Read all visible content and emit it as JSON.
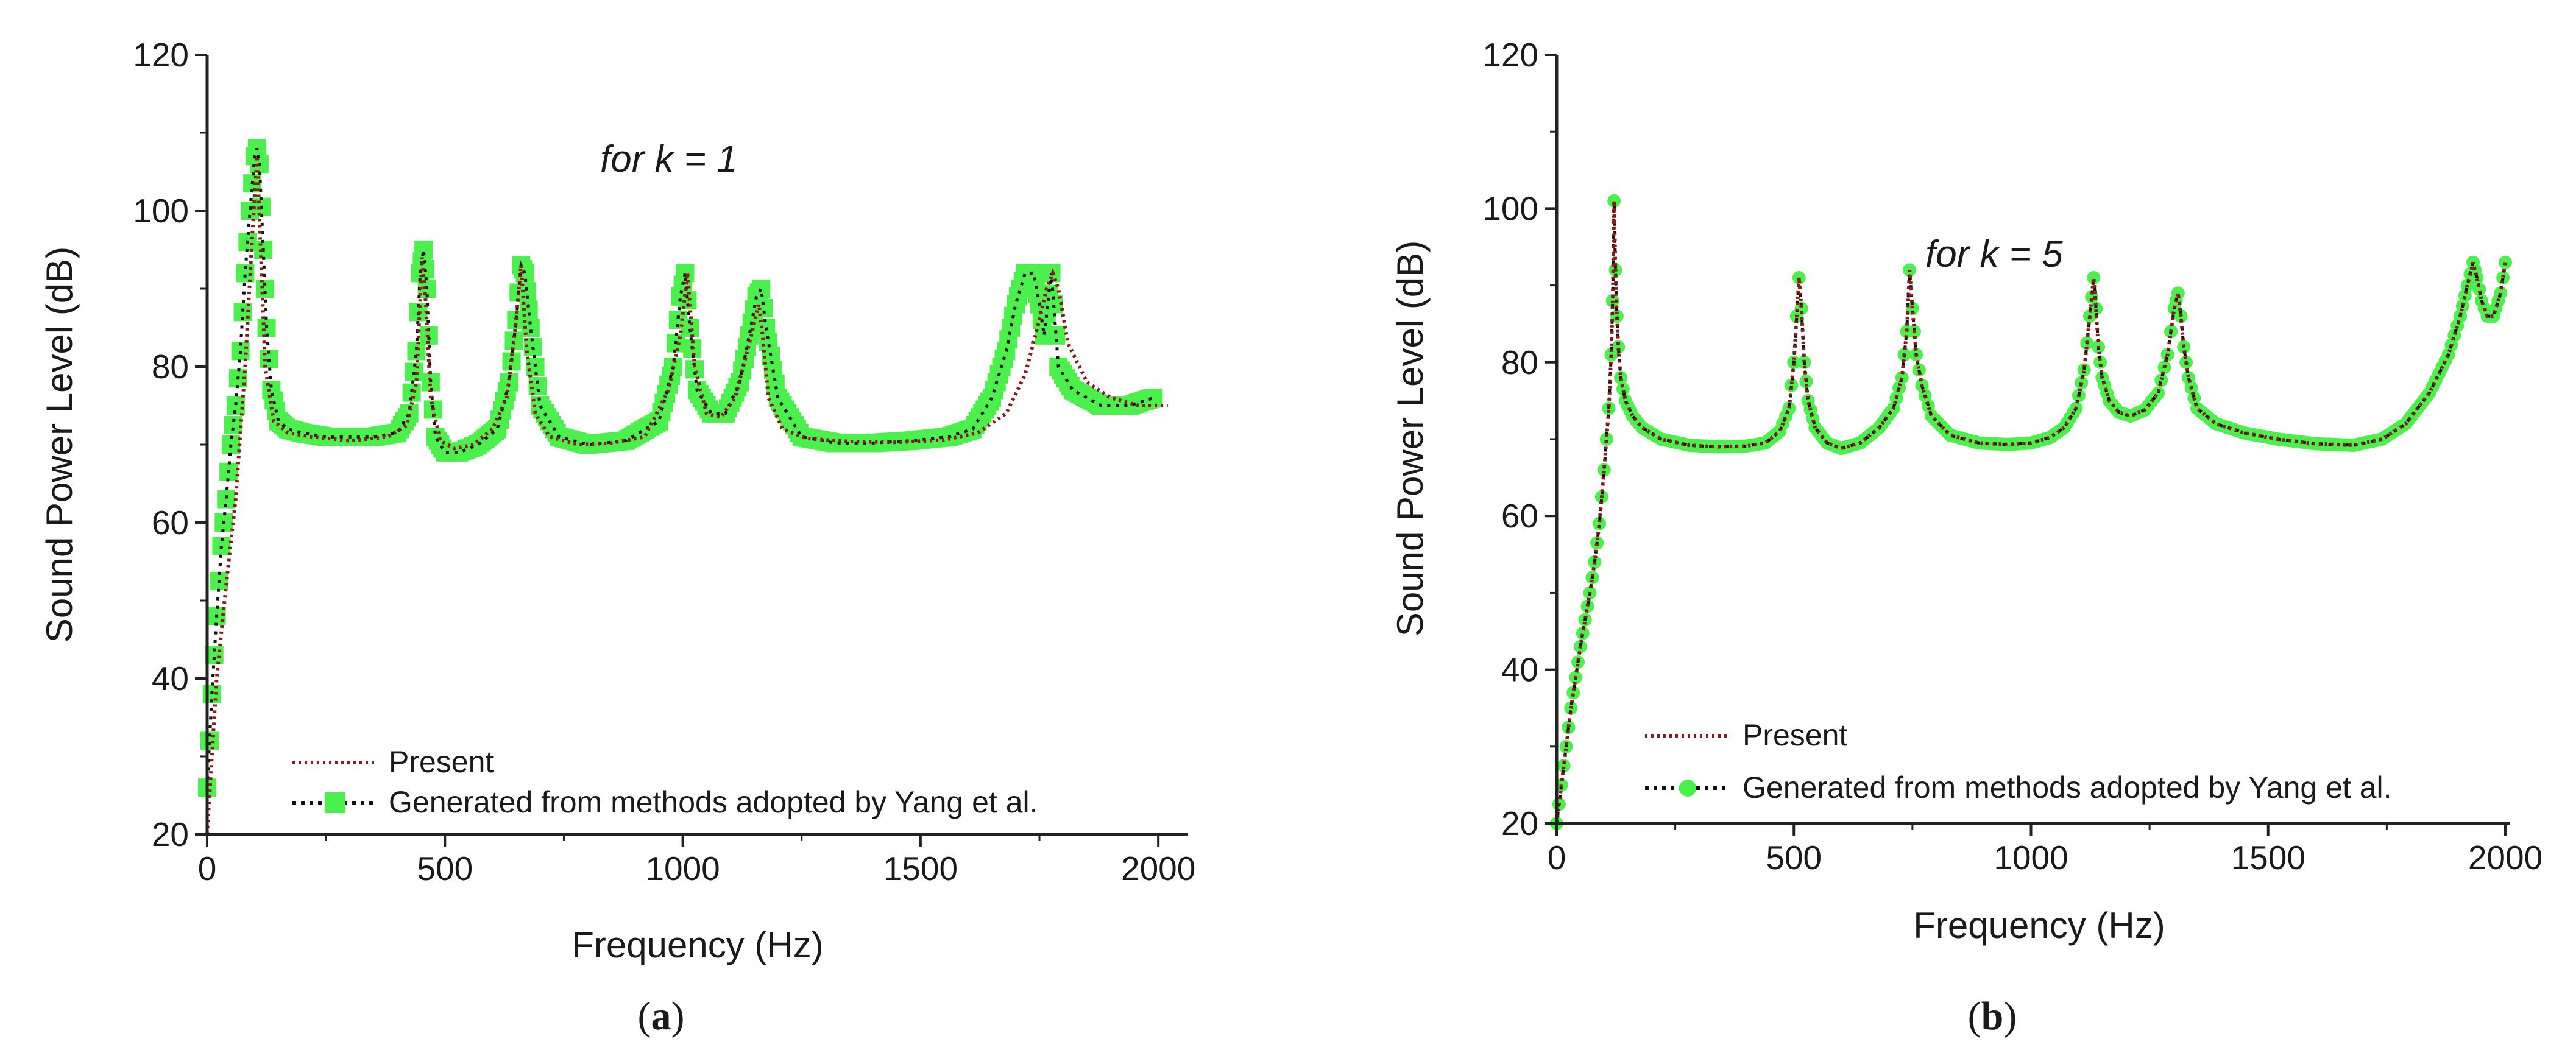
{
  "colors": {
    "present": "#8b1a1a",
    "yang_line": "#111111",
    "yang_marker": "#4cf04c",
    "axis": "#222222"
  },
  "chart_data": [
    {
      "type": "line",
      "panel_label_prefix": "(",
      "panel_label_letter": "a",
      "panel_label_suffix": ")",
      "annotation": "for k = 1",
      "xlabel": "Frequency (Hz)",
      "ylabel": "Sound Power Level (dB)",
      "xlim": [
        0,
        2060
      ],
      "ylim": [
        20,
        120
      ],
      "xticks": [
        0,
        500,
        1000,
        1500,
        2000
      ],
      "yticks": [
        20,
        40,
        60,
        80,
        100,
        120
      ],
      "marker": "square",
      "legend_position": "bottom-center",
      "legend": [
        "Present",
        "Generated from methods adopted by Yang et al."
      ],
      "series": [
        {
          "name": "Present",
          "style": "dotted",
          "x": [
            0,
            20,
            40,
            60,
            80,
            95,
            105,
            112,
            122,
            140,
            170,
            220,
            300,
            380,
            420,
            440,
            452,
            460,
            470,
            490,
            520,
            560,
            600,
            630,
            648,
            660,
            672,
            690,
            720,
            780,
            850,
            920,
            970,
            995,
            1010,
            1025,
            1050,
            1080,
            1110,
            1140,
            1160,
            1168,
            1180,
            1210,
            1260,
            1350,
            1450,
            1550,
            1620,
            1680,
            1720,
            1750,
            1765,
            1778,
            1790,
            1810,
            1850,
            1900,
            1960,
            2020
          ],
          "y": [
            20,
            40,
            52,
            63,
            80,
            97,
            107,
            96,
            80,
            73,
            71.5,
            71,
            70.5,
            71,
            72.5,
            78,
            94,
            88,
            76,
            70.5,
            69.5,
            70,
            72,
            76,
            85,
            93,
            82,
            74,
            71,
            70,
            70.2,
            71,
            77,
            84,
            92,
            80,
            74,
            73.5,
            76,
            83,
            88,
            84,
            76,
            72,
            70.8,
            70.4,
            70.3,
            70.6,
            71.5,
            74,
            79,
            86,
            90,
            92,
            90,
            83,
            78,
            76,
            75,
            75
          ]
        },
        {
          "name": "Generated from methods adopted by Yang et al.",
          "style": "dotted",
          "x": [
            0,
            10,
            20,
            30,
            40,
            50,
            60,
            70,
            80,
            90,
            100,
            105,
            110,
            118,
            125,
            135,
            150,
            170,
            200,
            250,
            300,
            350,
            400,
            425,
            440,
            448,
            455,
            462,
            470,
            480,
            500,
            530,
            570,
            610,
            635,
            650,
            660,
            668,
            680,
            700,
            740,
            800,
            880,
            950,
            980,
            995,
            1005,
            1015,
            1030,
            1060,
            1090,
            1120,
            1140,
            1155,
            1165,
            1175,
            1200,
            1250,
            1320,
            1400,
            1480,
            1560,
            1610,
            1650,
            1680,
            1700,
            1720,
            1738,
            1750,
            1760,
            1775,
            1790,
            1820,
            1880,
            1940,
            1990
          ],
          "y": [
            26,
            38,
            48,
            57,
            63,
            70,
            75,
            82,
            92,
            100,
            107,
            108,
            106,
            95,
            85,
            77,
            73,
            72,
            71.5,
            71,
            71,
            71,
            71.5,
            74,
            82,
            92,
            95,
            90,
            78,
            71,
            69,
            69,
            70,
            72,
            78,
            86,
            93,
            92,
            85,
            75,
            71,
            70,
            70.5,
            73,
            80,
            89,
            92,
            85,
            77,
            74,
            74,
            78,
            84,
            89,
            90,
            85,
            76,
            71,
            70.2,
            70.2,
            70.5,
            71,
            72,
            76,
            82,
            88,
            92,
            92,
            88,
            84,
            92,
            80,
            77,
            75,
            75,
            76
          ]
        }
      ]
    },
    {
      "type": "line",
      "panel_label_prefix": "(",
      "panel_label_letter": "b",
      "panel_label_suffix": ")",
      "annotation": "for k = 5",
      "xlabel": "Frequency (Hz)",
      "ylabel": "Sound Power Level (dB)",
      "xlim": [
        0,
        2000
      ],
      "ylim": [
        20,
        120
      ],
      "xticks": [
        0,
        500,
        1000,
        1500,
        2000
      ],
      "yticks": [
        20,
        40,
        60,
        80,
        100,
        120
      ],
      "marker": "circle",
      "legend_position": "bottom-center",
      "legend": [
        "Present",
        "Generated from methods adopted by Yang et al."
      ],
      "series": [
        {
          "name": "Present",
          "style": "dotted",
          "x": [
            0,
            10,
            20,
            30,
            40,
            50,
            60,
            70,
            80,
            90,
            100,
            110,
            115,
            118,
            121,
            124,
            127,
            130,
            135,
            145,
            160,
            180,
            220,
            280,
            340,
            400,
            440,
            470,
            490,
            500,
            506,
            511,
            516,
            522,
            530,
            545,
            570,
            600,
            640,
            680,
            710,
            728,
            738,
            744,
            750,
            758,
            770,
            790,
            830,
            890,
            950,
            1000,
            1040,
            1070,
            1095,
            1112,
            1124,
            1132,
            1137,
            1142,
            1150,
            1165,
            1185,
            1210,
            1240,
            1268,
            1288,
            1302,
            1310,
            1316,
            1322,
            1332,
            1350,
            1390,
            1450,
            1520,
            1600,
            1680,
            1740,
            1790,
            1840,
            1880,
            1905,
            1920,
            1932,
            1940,
            1950,
            1962,
            1975,
            1990,
            2000
          ],
          "y": [
            20,
            25,
            30,
            35,
            39,
            43,
            46.5,
            50,
            54,
            59,
            66,
            74,
            81,
            88,
            101,
            92,
            86,
            82,
            78,
            75,
            73,
            71.5,
            70,
            69.2,
            69,
            69.1,
            69.5,
            71,
            74,
            80,
            86,
            91,
            87,
            80,
            75,
            71.5,
            69.5,
            68.8,
            69.5,
            71.5,
            74,
            78,
            84,
            92,
            87,
            81,
            77,
            73,
            70.5,
            69.5,
            69.3,
            69.5,
            70.2,
            71.5,
            74,
            79,
            86,
            91,
            87,
            82,
            78,
            75,
            73.5,
            73,
            73.8,
            76,
            81,
            87,
            89,
            86,
            82,
            78,
            74,
            72,
            70.8,
            70,
            69.4,
            69.2,
            70,
            72,
            76,
            81,
            86,
            90,
            93,
            91,
            88,
            86,
            86,
            89,
            93
          ]
        },
        {
          "name": "Generated from methods adopted by Yang et al.",
          "style": "dotted",
          "x": [
            0,
            10,
            20,
            30,
            40,
            50,
            60,
            70,
            80,
            90,
            100,
            110,
            115,
            118,
            121,
            124,
            127,
            130,
            135,
            145,
            160,
            180,
            220,
            280,
            340,
            400,
            440,
            470,
            490,
            500,
            506,
            511,
            516,
            522,
            530,
            545,
            570,
            600,
            640,
            680,
            710,
            728,
            738,
            744,
            750,
            758,
            770,
            790,
            830,
            890,
            950,
            1000,
            1040,
            1070,
            1095,
            1112,
            1124,
            1132,
            1137,
            1142,
            1150,
            1165,
            1185,
            1210,
            1240,
            1268,
            1288,
            1302,
            1310,
            1316,
            1322,
            1332,
            1350,
            1390,
            1450,
            1520,
            1600,
            1680,
            1740,
            1790,
            1840,
            1880,
            1905,
            1920,
            1932,
            1940,
            1950,
            1962,
            1975,
            1990,
            2000
          ],
          "y": [
            20,
            25,
            30,
            35,
            39,
            43,
            46.5,
            50,
            54,
            59,
            66,
            74,
            81,
            88,
            101,
            92,
            86,
            82,
            78,
            75,
            73,
            71.5,
            70,
            69.2,
            69,
            69.1,
            69.5,
            71,
            74,
            80,
            86,
            91,
            87,
            80,
            75,
            71.5,
            69.5,
            68.8,
            69.5,
            71.5,
            74,
            78,
            84,
            92,
            87,
            81,
            77,
            73,
            70.5,
            69.5,
            69.3,
            69.5,
            70.2,
            71.5,
            74,
            79,
            86,
            91,
            87,
            82,
            78,
            75,
            73.5,
            73,
            73.8,
            76,
            81,
            87,
            89,
            86,
            82,
            78,
            74,
            72,
            70.8,
            70,
            69.4,
            69.2,
            70,
            72,
            76,
            81,
            86,
            90,
            93,
            91,
            88,
            86,
            86,
            89,
            93
          ]
        }
      ]
    }
  ]
}
